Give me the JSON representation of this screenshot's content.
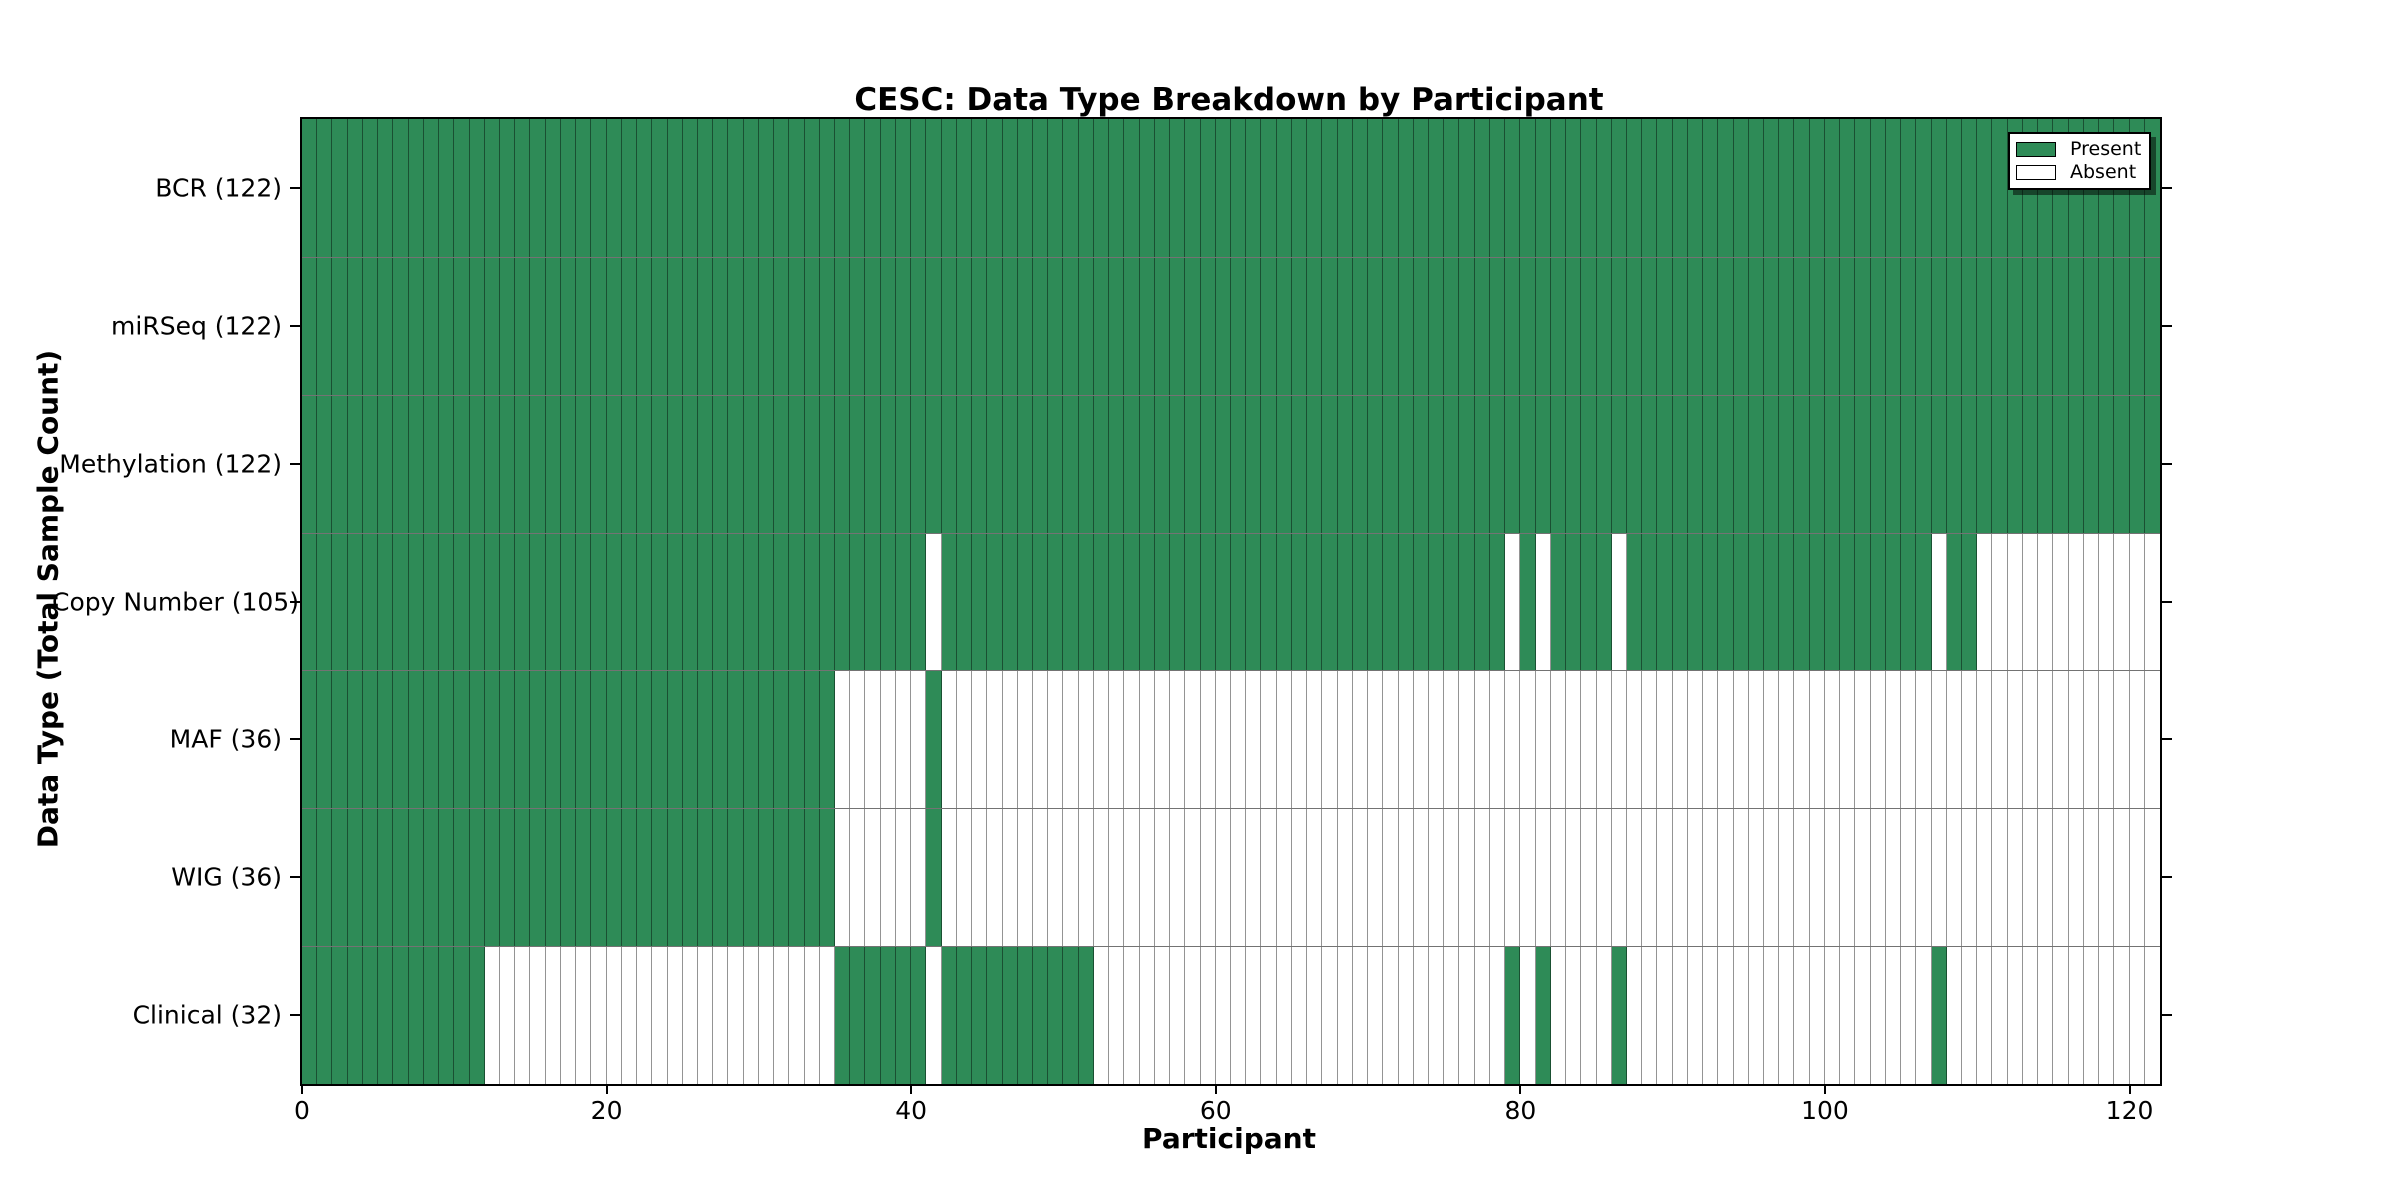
{
  "title": "CESC: Data Type Breakdown by Participant",
  "x_axis": {
    "label": "Participant"
  },
  "y_axis": {
    "label": "Data Type (Total Sample Count)"
  },
  "legend": {
    "present_label": "Present",
    "absent_label": "Absent"
  },
  "colors": {
    "present": "#2e8b57",
    "absent": "#ffffff",
    "cell_edge": "rgba(0,0,0,0.42)",
    "row_edge": "rgba(0,0,0,0.55)",
    "axis": "#000000"
  },
  "chart_data": {
    "type": "heatmap",
    "title": "CESC: Data Type Breakdown by Participant",
    "xlabel": "Participant",
    "ylabel": "Data Type (Total Sample Count)",
    "x_range": [
      0,
      122
    ],
    "n_participants": 122,
    "x_ticks": [
      0,
      20,
      40,
      60,
      80,
      100,
      120
    ],
    "legend_entries": [
      "Present",
      "Absent"
    ],
    "legend_position": "upper right",
    "grid": "cell borders only",
    "rows": [
      {
        "label": "BCR (122)",
        "name": "BCR",
        "total": 122,
        "present_ranges": [
          [
            0,
            121
          ]
        ]
      },
      {
        "label": "miRSeq (122)",
        "name": "miRSeq",
        "total": 122,
        "present_ranges": [
          [
            0,
            121
          ]
        ]
      },
      {
        "label": "Methylation (122)",
        "name": "Methylation",
        "total": 122,
        "present_ranges": [
          [
            0,
            121
          ]
        ]
      },
      {
        "label": "Copy Number (105)",
        "name": "Copy Number",
        "total": 105,
        "present_ranges": [
          [
            0,
            40
          ],
          [
            42,
            78
          ],
          [
            80,
            80
          ],
          [
            82,
            85
          ],
          [
            87,
            106
          ],
          [
            108,
            109
          ]
        ]
      },
      {
        "label": "MAF (36)",
        "name": "MAF",
        "total": 36,
        "present_ranges": [
          [
            0,
            34
          ],
          [
            41,
            41
          ]
        ]
      },
      {
        "label": "WIG (36)",
        "name": "WIG",
        "total": 36,
        "present_ranges": [
          [
            0,
            34
          ],
          [
            41,
            41
          ]
        ]
      },
      {
        "label": "Clinical (32)",
        "name": "Clinical",
        "total": 32,
        "present_ranges": [
          [
            0,
            11
          ],
          [
            35,
            40
          ],
          [
            42,
            51
          ],
          [
            79,
            79
          ],
          [
            81,
            81
          ],
          [
            86,
            86
          ],
          [
            107,
            107
          ]
        ]
      }
    ]
  }
}
